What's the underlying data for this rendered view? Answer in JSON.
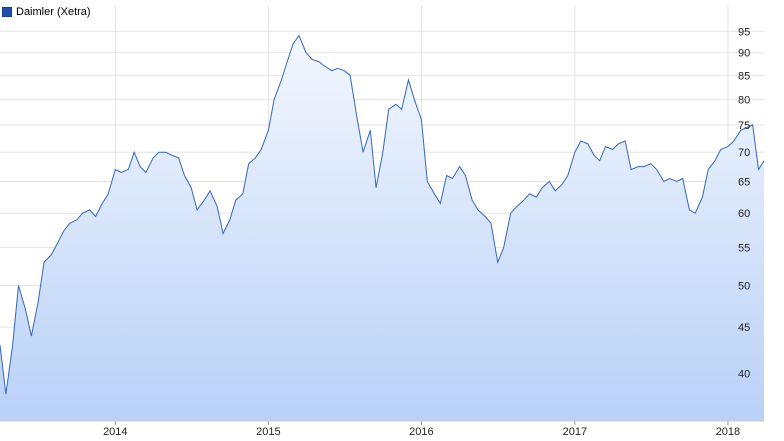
{
  "colors": {
    "line": "#3567b8",
    "fill_top": "#f3f7fe",
    "fill_bottom": "#b9d1f7",
    "grid": "#e3e3e3",
    "legend_swatch": "#1f4fa8",
    "axis_text": "#222222"
  },
  "legend": {
    "label": "Daimler (Xetra)"
  },
  "chart_data": {
    "type": "area",
    "title": "",
    "xlabel": "",
    "ylabel": "",
    "series": [
      {
        "name": "Daimler (Xetra)",
        "x": [
          "2013-04-01",
          "2013-04-15",
          "2013-05-01",
          "2013-05-15",
          "2013-06-01",
          "2013-06-15",
          "2013-07-01",
          "2013-07-15",
          "2013-08-01",
          "2013-08-15",
          "2013-09-01",
          "2013-09-15",
          "2013-10-01",
          "2013-10-15",
          "2013-11-01",
          "2013-11-15",
          "2013-12-01",
          "2013-12-15",
          "2014-01-01",
          "2014-01-15",
          "2014-02-01",
          "2014-02-15",
          "2014-03-01",
          "2014-03-15",
          "2014-04-01",
          "2014-04-15",
          "2014-05-01",
          "2014-05-15",
          "2014-06-01",
          "2014-06-15",
          "2014-07-01",
          "2014-07-15",
          "2014-08-01",
          "2014-08-15",
          "2014-09-01",
          "2014-09-15",
          "2014-10-01",
          "2014-10-15",
          "2014-11-01",
          "2014-11-15",
          "2014-12-01",
          "2014-12-15",
          "2015-01-01",
          "2015-01-15",
          "2015-02-01",
          "2015-02-15",
          "2015-03-01",
          "2015-03-15",
          "2015-04-01",
          "2015-04-15",
          "2015-05-01",
          "2015-05-15",
          "2015-06-01",
          "2015-06-15",
          "2015-07-01",
          "2015-07-15",
          "2015-08-01",
          "2015-08-15",
          "2015-09-01",
          "2015-09-15",
          "2015-10-01",
          "2015-10-15",
          "2015-11-01",
          "2015-11-15",
          "2015-12-01",
          "2015-12-15",
          "2016-01-01",
          "2016-01-15",
          "2016-02-01",
          "2016-02-15",
          "2016-03-01",
          "2016-03-15",
          "2016-04-01",
          "2016-04-15",
          "2016-05-01",
          "2016-05-15",
          "2016-06-01",
          "2016-06-15",
          "2016-07-01",
          "2016-07-15",
          "2016-08-01",
          "2016-08-15",
          "2016-09-01",
          "2016-09-15",
          "2016-10-01",
          "2016-10-15",
          "2016-11-01",
          "2016-11-15",
          "2016-12-01",
          "2016-12-15",
          "2017-01-01",
          "2017-01-15",
          "2017-02-01",
          "2017-02-15",
          "2017-03-01",
          "2017-03-15",
          "2017-04-01",
          "2017-04-15",
          "2017-05-01",
          "2017-05-15",
          "2017-06-01",
          "2017-06-15",
          "2017-07-01",
          "2017-07-15",
          "2017-08-01",
          "2017-08-15",
          "2017-09-01",
          "2017-09-15",
          "2017-10-01",
          "2017-10-15",
          "2017-11-01",
          "2017-11-15",
          "2017-12-01",
          "2017-12-15",
          "2018-01-01",
          "2018-01-15",
          "2018-02-01",
          "2018-02-15",
          "2018-03-01",
          "2018-03-15",
          "2018-03-28"
        ],
        "values": [
          43.0,
          38.0,
          43.0,
          50.0,
          47.0,
          44.0,
          48.0,
          53.0,
          54.0,
          55.5,
          57.5,
          58.5,
          59.0,
          60.0,
          60.5,
          59.5,
          61.5,
          63.0,
          67.0,
          66.5,
          67.0,
          70.0,
          67.5,
          66.5,
          69.0,
          70.0,
          70.0,
          69.5,
          69.0,
          66.0,
          64.0,
          60.5,
          62.0,
          63.5,
          61.0,
          57.0,
          59.0,
          62.0,
          63.0,
          68.0,
          69.0,
          70.5,
          74.0,
          80.0,
          84.0,
          88.0,
          92.0,
          94.0,
          90.0,
          88.5,
          88.0,
          87.0,
          86.0,
          86.5,
          86.0,
          85.0,
          76.0,
          70.0,
          74.0,
          64.0,
          70.0,
          78.0,
          79.0,
          78.0,
          84.0,
          80.0,
          76.0,
          65.0,
          63.0,
          61.5,
          66.0,
          65.5,
          67.5,
          66.0,
          62.0,
          60.5,
          59.5,
          58.5,
          53.0,
          55.0,
          60.0,
          61.0,
          62.0,
          63.0,
          62.5,
          64.0,
          65.0,
          63.5,
          64.5,
          66.0,
          70.0,
          72.0,
          71.5,
          69.5,
          68.5,
          71.0,
          70.5,
          71.5,
          72.0,
          67.0,
          67.5,
          67.5,
          68.0,
          67.0,
          65.0,
          65.5,
          65.0,
          65.5,
          60.5,
          60.0,
          62.5,
          67.0,
          68.5,
          70.5,
          71.0,
          72.0,
          74.0,
          74.5,
          75.0,
          67.0,
          68.5
        ]
      }
    ],
    "x_tick_labels": [
      "2014",
      "2015",
      "2016",
      "2017",
      "2018"
    ],
    "x_tick_values": [
      "2014-01-01",
      "2015-01-01",
      "2016-01-01",
      "2017-01-01",
      "2018-01-01"
    ],
    "y_tick_labels": [
      "40",
      "45",
      "50",
      "55",
      "60",
      "65",
      "70",
      "75",
      "80",
      "85",
      "90",
      "95"
    ],
    "y_tick_values": [
      40,
      45,
      50,
      55,
      60,
      65,
      70,
      75,
      80,
      85,
      90,
      95
    ],
    "ylim": [
      35.5,
      97.5
    ],
    "xlim": [
      "2013-04-01",
      "2018-03-28"
    ],
    "y_scale": "log",
    "grid": true,
    "legend_position": "top-left",
    "y_axis_side": "right"
  }
}
